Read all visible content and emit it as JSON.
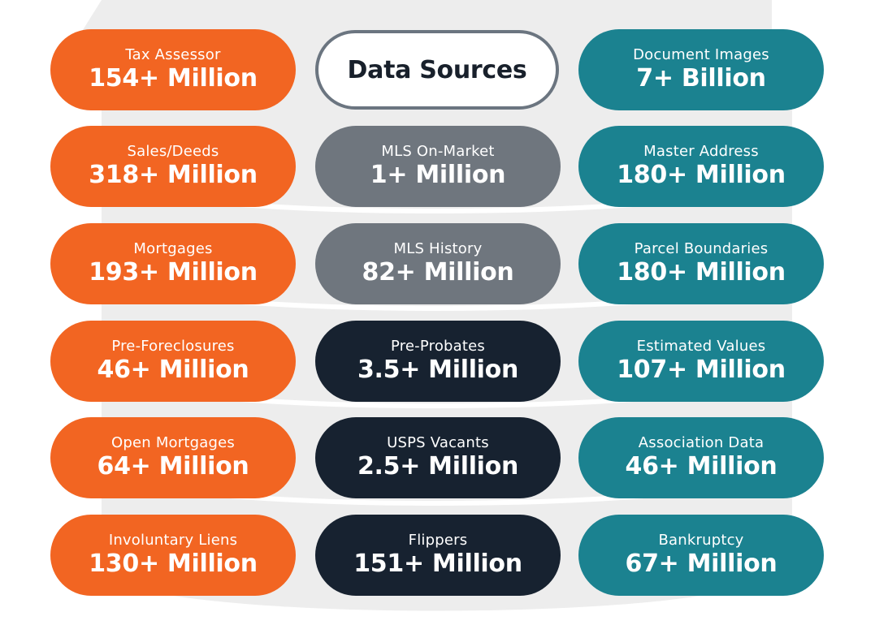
{
  "title": "Data Sources",
  "colors": {
    "orange": "#f26522",
    "teal": "#1b8290",
    "gray": "#6f767e",
    "navy": "#172230",
    "background_shape": "#ededed",
    "title_border": "#6b7580"
  },
  "columns": [
    {
      "items": [
        {
          "label": "Tax Assessor",
          "value": "154+ Million",
          "color": "#f26522"
        },
        {
          "label": "Sales/Deeds",
          "value": "318+ Million",
          "color": "#f26522"
        },
        {
          "label": "Mortgages",
          "value": "193+ Million",
          "color": "#f26522"
        },
        {
          "label": "Pre-Foreclosures",
          "value": "46+ Million",
          "color": "#f26522"
        },
        {
          "label": "Open Mortgages",
          "value": "64+ Million",
          "color": "#f26522"
        },
        {
          "label": "Involuntary Liens",
          "value": "130+ Million",
          "color": "#f26522"
        }
      ]
    },
    {
      "items": [
        {
          "label": "MLS On-Market",
          "value": "1+ Million",
          "color": "#6f767e"
        },
        {
          "label": "MLS History",
          "value": "82+ Million",
          "color": "#6f767e"
        },
        {
          "label": "Pre-Probates",
          "value": "3.5+ Million",
          "color": "#172230"
        },
        {
          "label": "USPS Vacants",
          "value": "2.5+ Million",
          "color": "#172230"
        },
        {
          "label": "Flippers",
          "value": "151+ Million",
          "color": "#172230"
        }
      ]
    },
    {
      "items": [
        {
          "label": "Document Images",
          "value": "7+ Billion",
          "color": "#1b8290"
        },
        {
          "label": "Master Address",
          "value": "180+ Million",
          "color": "#1b8290"
        },
        {
          "label": "Parcel Boundaries",
          "value": "180+ Million",
          "color": "#1b8290"
        },
        {
          "label": "Estimated Values",
          "value": "107+ Million",
          "color": "#1b8290"
        },
        {
          "label": "Association Data",
          "value": "46+ Million",
          "color": "#1b8290"
        },
        {
          "label": "Bankruptcy",
          "value": "67+ Million",
          "color": "#1b8290"
        }
      ]
    }
  ]
}
